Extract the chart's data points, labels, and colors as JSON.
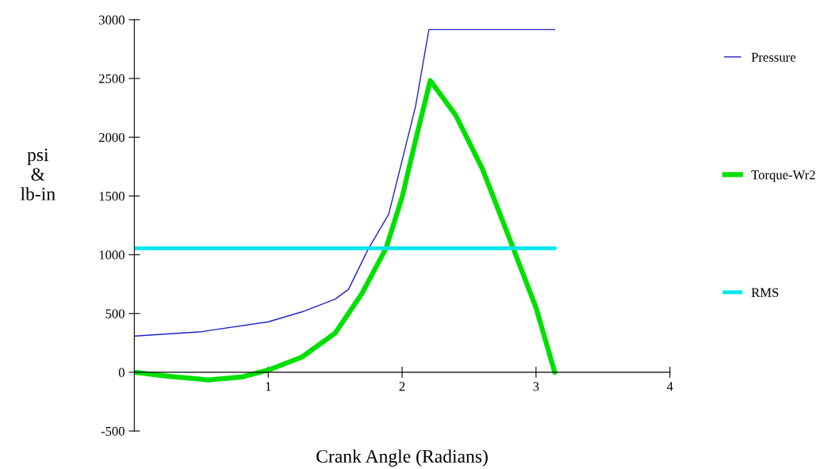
{
  "chart_data": {
    "type": "line",
    "xlabel": "Crank Angle (Radians)",
    "ylabel": "psi\n&\nlb-in",
    "xlim": [
      0,
      4
    ],
    "ylim": [
      -500,
      3000
    ],
    "xticks": [
      1,
      2,
      3,
      4
    ],
    "yticks": [
      -500,
      0,
      500,
      1000,
      1500,
      2000,
      2500,
      3000
    ],
    "grid": false,
    "legend": "right",
    "marker": "none",
    "line_style": "solid",
    "series": [
      {
        "name": "Pressure",
        "color": "#2222cc",
        "x": [
          0,
          0.5,
          1.0,
          1.25,
          1.5,
          1.6,
          1.75,
          1.9,
          2.0,
          2.1,
          2.2,
          3.14
        ],
        "values": [
          308,
          345,
          429,
          513,
          622,
          706,
          1055,
          1345,
          1802,
          2260,
          2916,
          2916
        ]
      },
      {
        "name": "Torque-Wr2",
        "color": "#00e000",
        "x": [
          0,
          0.25,
          0.55,
          0.8,
          1.0,
          1.25,
          1.5,
          1.7,
          1.88,
          2.0,
          2.1,
          2.21,
          2.4,
          2.6,
          2.83,
          3.0,
          3.14
        ],
        "values": [
          0,
          -34,
          -65,
          -41,
          19,
          128,
          333,
          670,
          1055,
          1490,
          1971,
          2482,
          2188,
          1730,
          1055,
          549,
          0
        ]
      },
      {
        "name": "RMS",
        "color": "#00e5ee",
        "x": [
          0,
          3.14
        ],
        "values": [
          1055,
          1055
        ]
      }
    ]
  }
}
